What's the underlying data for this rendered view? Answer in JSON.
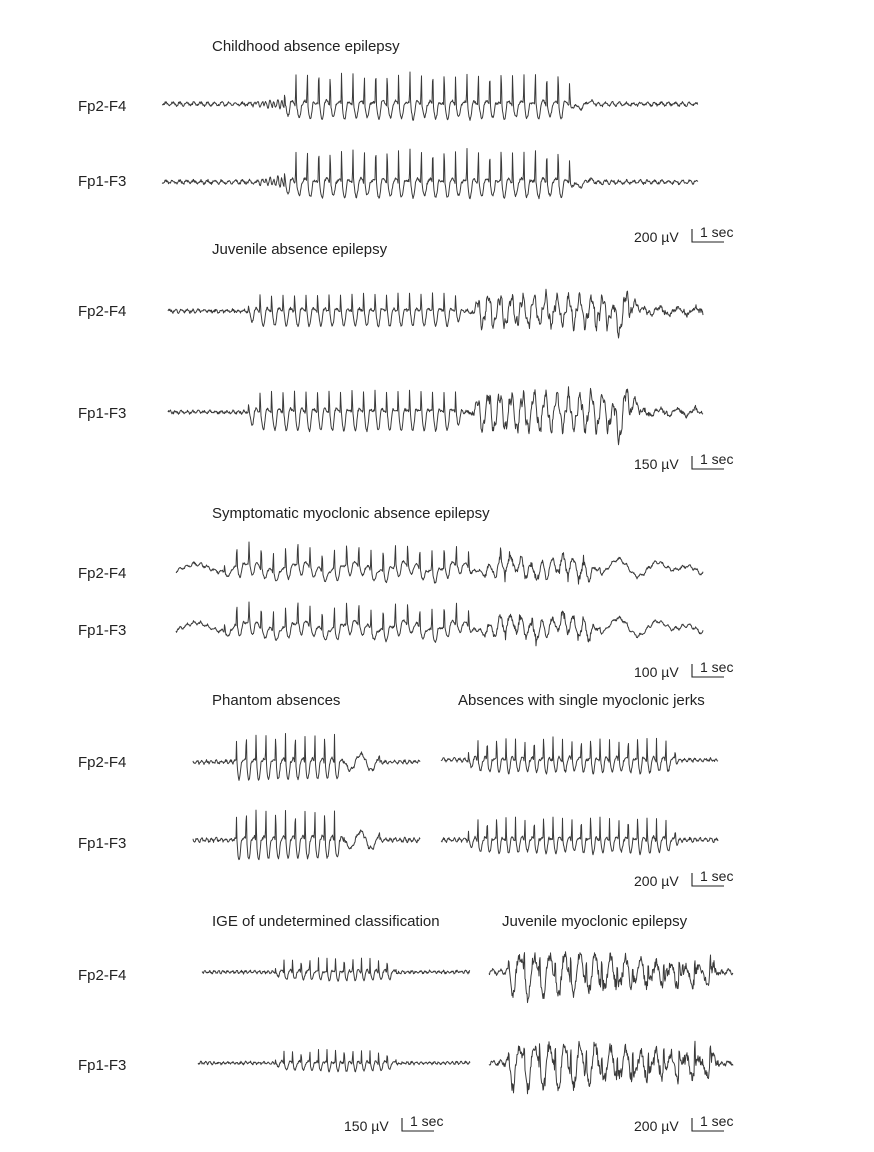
{
  "panels": [
    {
      "title": "Childhood absence epilepsy",
      "channels": [
        "Fp2-F4",
        "Fp1-F3"
      ],
      "scale": {
        "amplitude": "200 µV",
        "time": "1 sec"
      }
    },
    {
      "title": "Juvenile absence epilepsy",
      "channels": [
        "Fp2-F4",
        "Fp1-F3"
      ],
      "scale": {
        "amplitude": "150 µV",
        "time": "1 sec"
      }
    },
    {
      "title": "Symptomatic myoclonic absence epilepsy",
      "channels": [
        "Fp2-F4",
        "Fp1-F3"
      ],
      "scale": {
        "amplitude": "100 µV",
        "time": "1 sec"
      }
    },
    {
      "titles": [
        "Phantom absences",
        "Absences with single myoclonic jerks"
      ],
      "channels": [
        "Fp2-F4",
        "Fp1-F3"
      ],
      "scale": {
        "amplitude": "200 µV",
        "time": "1 sec"
      }
    },
    {
      "titles": [
        "IGE of undetermined classification",
        "Juvenile myoclonic epilepsy"
      ],
      "channels": [
        "Fp2-F4",
        "Fp1-F3"
      ],
      "scales": [
        {
          "amplitude": "150 µV",
          "time": "1 sec"
        },
        {
          "amplitude": "200 µV",
          "time": "1 sec"
        }
      ]
    }
  ]
}
